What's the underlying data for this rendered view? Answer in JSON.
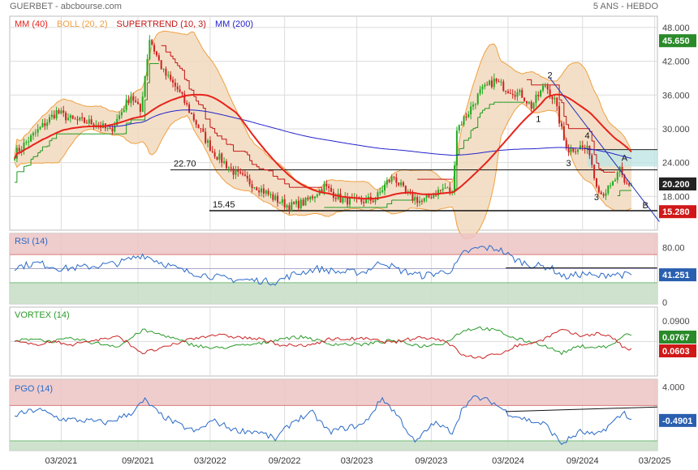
{
  "header": {
    "title": "GUERBET - abcbourse.com",
    "period": "5 ANS - HEBDO"
  },
  "legend": [
    {
      "label": "MM (40)",
      "color": "#e8221b"
    },
    {
      "label": "BOLL (20, 2)",
      "color": "#f0a040"
    },
    {
      "label": "SUPERTREND (10, 3)",
      "color": "#c41414"
    },
    {
      "label": "MM (200)",
      "color": "#2222cc"
    }
  ],
  "colors": {
    "up": "#22aa22",
    "down": "#cc2222",
    "mm40": "#e8221b",
    "mm200": "#2222cc",
    "boll": "#f0a040",
    "bollFill": "#f1d9bd",
    "supertrendUp": "#229922",
    "supertrendDown": "#c41414",
    "rsi": "#2a6ac8",
    "pgo": "#2a6ac8",
    "vortexPlus": "#2a9a2a",
    "vortexMinus": "#cc2222",
    "overbought": "#ecc4c4",
    "oversold": "#c9dfc9",
    "grid": "#dcdcdc",
    "tag": "#2a5fb0",
    "tagDark": "#222222",
    "tagGreen": "#2a8a2a",
    "tagRed": "#d01818",
    "hline": "#111111"
  },
  "chart_data": [
    {
      "type": "candlestick",
      "id": "price",
      "x_ticks": [
        "03/2021",
        "09/2021",
        "03/2022",
        "09/2022",
        "03/2023",
        "09/2023",
        "03/2024",
        "09/2024",
        "03/2025"
      ],
      "y_ticks": [
        "18.000",
        "24.000",
        "30.000",
        "36.000",
        "42.000",
        "48.000"
      ],
      "ylim": [
        12,
        50
      ],
      "last_price": "20.200",
      "price_tags": [
        {
          "value": "45.650",
          "style": "green"
        },
        {
          "value": "20.200",
          "style": "dark"
        },
        {
          "value": "15.280",
          "style": "red"
        }
      ],
      "ohlc_anchors": [
        [
          0,
          25.5
        ],
        [
          18,
          33
        ],
        [
          25,
          31.5
        ],
        [
          35,
          31
        ],
        [
          41,
          29.5
        ],
        [
          50,
          36
        ],
        [
          54,
          33
        ],
        [
          58,
          46
        ],
        [
          64,
          40
        ],
        [
          70,
          37
        ],
        [
          78,
          31
        ],
        [
          85,
          26
        ],
        [
          95,
          22
        ],
        [
          105,
          19.5
        ],
        [
          112,
          17.5
        ],
        [
          118,
          16.2
        ],
        [
          125,
          17
        ],
        [
          133,
          19.8
        ],
        [
          140,
          17.5
        ],
        [
          147,
          17
        ],
        [
          155,
          17.5
        ],
        [
          160,
          20.5
        ],
        [
          163,
          21.5
        ],
        [
          168,
          18.5
        ],
        [
          175,
          17
        ],
        [
          180,
          18.5
        ],
        [
          185,
          19.5
        ],
        [
          188,
          18.5
        ],
        [
          190,
          30
        ],
        [
          195,
          33
        ],
        [
          200,
          36.5
        ],
        [
          206,
          38.5
        ],
        [
          212,
          37
        ],
        [
          218,
          36
        ],
        [
          222,
          34
        ],
        [
          228,
          37.8
        ],
        [
          232,
          35
        ],
        [
          236,
          28
        ],
        [
          238,
          26.3
        ],
        [
          243,
          26.8
        ],
        [
          247,
          26
        ],
        [
          249,
          21.5
        ],
        [
          252,
          18.5
        ],
        [
          256,
          19.5
        ],
        [
          260,
          22.5
        ],
        [
          262,
          20.2
        ]
      ],
      "horizontal_levels": [
        {
          "label": "22.70",
          "value": 22.7
        },
        {
          "label": "15.45",
          "value": 15.45
        }
      ],
      "zone": {
        "from": 23.3,
        "to": 26.3
      },
      "annotations": [
        {
          "text": "2",
          "x": 230,
          "y": 39.0
        },
        {
          "text": "1",
          "x": 225,
          "y": 31.2
        },
        {
          "text": "4",
          "x": 246,
          "y": 28.3
        },
        {
          "text": "3",
          "x": 238,
          "y": 23.4
        },
        {
          "text": "3",
          "x": 250,
          "y": 17.3
        },
        {
          "text": "A",
          "x": 262,
          "y": 24.3
        },
        {
          "text": "B",
          "x": 271,
          "y": 15.9
        }
      ],
      "trendline": {
        "from": [
          230,
          39.0
        ],
        "to": [
          277,
          13.5
        ]
      },
      "series": [
        {
          "name": "MM (40)"
        },
        {
          "name": "BOLL (20, 2)"
        },
        {
          "name": "SUPERTREND (10, 3)"
        },
        {
          "name": "MM (200)"
        }
      ]
    },
    {
      "type": "line",
      "id": "rsi",
      "title": "RSI (14)",
      "y_ticks": [
        "0",
        "80.00"
      ],
      "ylim": [
        0,
        100
      ],
      "zones": {
        "overbought": 70,
        "oversold": 30
      },
      "reference": 50,
      "last_value": "41.251",
      "anchors": [
        [
          0,
          52
        ],
        [
          10,
          58
        ],
        [
          20,
          50
        ],
        [
          30,
          52
        ],
        [
          45,
          58
        ],
        [
          55,
          70
        ],
        [
          62,
          60
        ],
        [
          72,
          47
        ],
        [
          80,
          42
        ],
        [
          92,
          35
        ],
        [
          105,
          33
        ],
        [
          112,
          31
        ],
        [
          120,
          42
        ],
        [
          130,
          50
        ],
        [
          140,
          45
        ],
        [
          150,
          45
        ],
        [
          158,
          60
        ],
        [
          165,
          48
        ],
        [
          175,
          40
        ],
        [
          182,
          44
        ],
        [
          188,
          48
        ],
        [
          193,
          72
        ],
        [
          200,
          80
        ],
        [
          208,
          78
        ],
        [
          215,
          63
        ],
        [
          222,
          55
        ],
        [
          230,
          52
        ],
        [
          236,
          38
        ],
        [
          245,
          43
        ],
        [
          250,
          38
        ],
        [
          256,
          43
        ],
        [
          262,
          41
        ]
      ],
      "trendline": {
        "from": [
          211,
          51
        ],
        "to": [
          276,
          51
        ]
      }
    },
    {
      "type": "line",
      "id": "vortex",
      "title": "VORTEX (14)",
      "y_ticks": [
        "0.0900"
      ],
      "ylim": [
        0.4,
        1.6
      ],
      "last_values": {
        "plus": "0.0767",
        "minus": "0.0603"
      },
      "plus_anchors": [
        [
          0,
          1.0
        ],
        [
          8,
          1.06
        ],
        [
          15,
          1.0
        ],
        [
          25,
          1.05
        ],
        [
          35,
          0.97
        ],
        [
          45,
          0.92
        ],
        [
          55,
          1.2
        ],
        [
          65,
          1.1
        ],
        [
          75,
          0.96
        ],
        [
          85,
          0.88
        ],
        [
          95,
          0.92
        ],
        [
          105,
          0.96
        ],
        [
          115,
          1.06
        ],
        [
          125,
          1.08
        ],
        [
          135,
          0.96
        ],
        [
          150,
          0.95
        ],
        [
          162,
          1.02
        ],
        [
          175,
          0.92
        ],
        [
          185,
          0.98
        ],
        [
          193,
          1.2
        ],
        [
          200,
          1.24
        ],
        [
          208,
          1.18
        ],
        [
          215,
          1.05
        ],
        [
          225,
          0.97
        ],
        [
          235,
          0.8
        ],
        [
          243,
          0.92
        ],
        [
          250,
          0.9
        ],
        [
          256,
          0.92
        ],
        [
          262,
          1.12
        ],
        [
          265,
          1.1
        ]
      ],
      "minus_anchors": [
        [
          0,
          1.0
        ],
        [
          8,
          0.94
        ],
        [
          15,
          1.0
        ],
        [
          25,
          0.95
        ],
        [
          35,
          1.03
        ],
        [
          45,
          1.08
        ],
        [
          55,
          0.8
        ],
        [
          65,
          0.9
        ],
        [
          75,
          1.04
        ],
        [
          85,
          1.12
        ],
        [
          95,
          1.08
        ],
        [
          105,
          1.04
        ],
        [
          115,
          0.94
        ],
        [
          125,
          0.92
        ],
        [
          135,
          1.04
        ],
        [
          150,
          1.05
        ],
        [
          162,
          0.98
        ],
        [
          175,
          1.08
        ],
        [
          185,
          1.02
        ],
        [
          193,
          0.75
        ],
        [
          200,
          0.72
        ],
        [
          208,
          0.78
        ],
        [
          215,
          0.92
        ],
        [
          225,
          1.0
        ],
        [
          235,
          1.2
        ],
        [
          243,
          1.1
        ],
        [
          250,
          1.14
        ],
        [
          256,
          1.1
        ],
        [
          262,
          0.88
        ],
        [
          265,
          0.86
        ]
      ]
    },
    {
      "type": "line",
      "id": "pgo",
      "title": "PGO (14)",
      "y_ticks": [
        "4.000"
      ],
      "ylim": [
        -4.5,
        5.0
      ],
      "zones": {
        "overbought": 1.5,
        "oversold": -3.2
      },
      "last_value": "-0.4901",
      "anchors": [
        [
          0,
          0.2
        ],
        [
          10,
          1.0
        ],
        [
          20,
          -0.3
        ],
        [
          30,
          -0.5
        ],
        [
          40,
          -0.8
        ],
        [
          50,
          0.5
        ],
        [
          56,
          2.2
        ],
        [
          62,
          0.4
        ],
        [
          70,
          -1.0
        ],
        [
          78,
          -2.0
        ],
        [
          85,
          -0.5
        ],
        [
          95,
          -1.8
        ],
        [
          105,
          -2.0
        ],
        [
          112,
          -3.0
        ],
        [
          120,
          -0.5
        ],
        [
          128,
          0.5
        ],
        [
          135,
          -2.0
        ],
        [
          142,
          -1.5
        ],
        [
          150,
          -1.0
        ],
        [
          158,
          2.5
        ],
        [
          165,
          0.0
        ],
        [
          172,
          -3.5
        ],
        [
          180,
          -0.8
        ],
        [
          188,
          -2.0
        ],
        [
          193,
          1.5
        ],
        [
          198,
          2.6
        ],
        [
          205,
          2.0
        ],
        [
          212,
          0.5
        ],
        [
          222,
          -0.6
        ],
        [
          228,
          -1.0
        ],
        [
          235,
          -3.6
        ],
        [
          243,
          -2.0
        ],
        [
          250,
          -2.5
        ],
        [
          256,
          -1.0
        ],
        [
          262,
          0.6
        ],
        [
          265,
          -0.5
        ]
      ],
      "trendline": {
        "from": [
          211,
          0.7
        ],
        "to": [
          276,
          1.3
        ]
      }
    }
  ]
}
